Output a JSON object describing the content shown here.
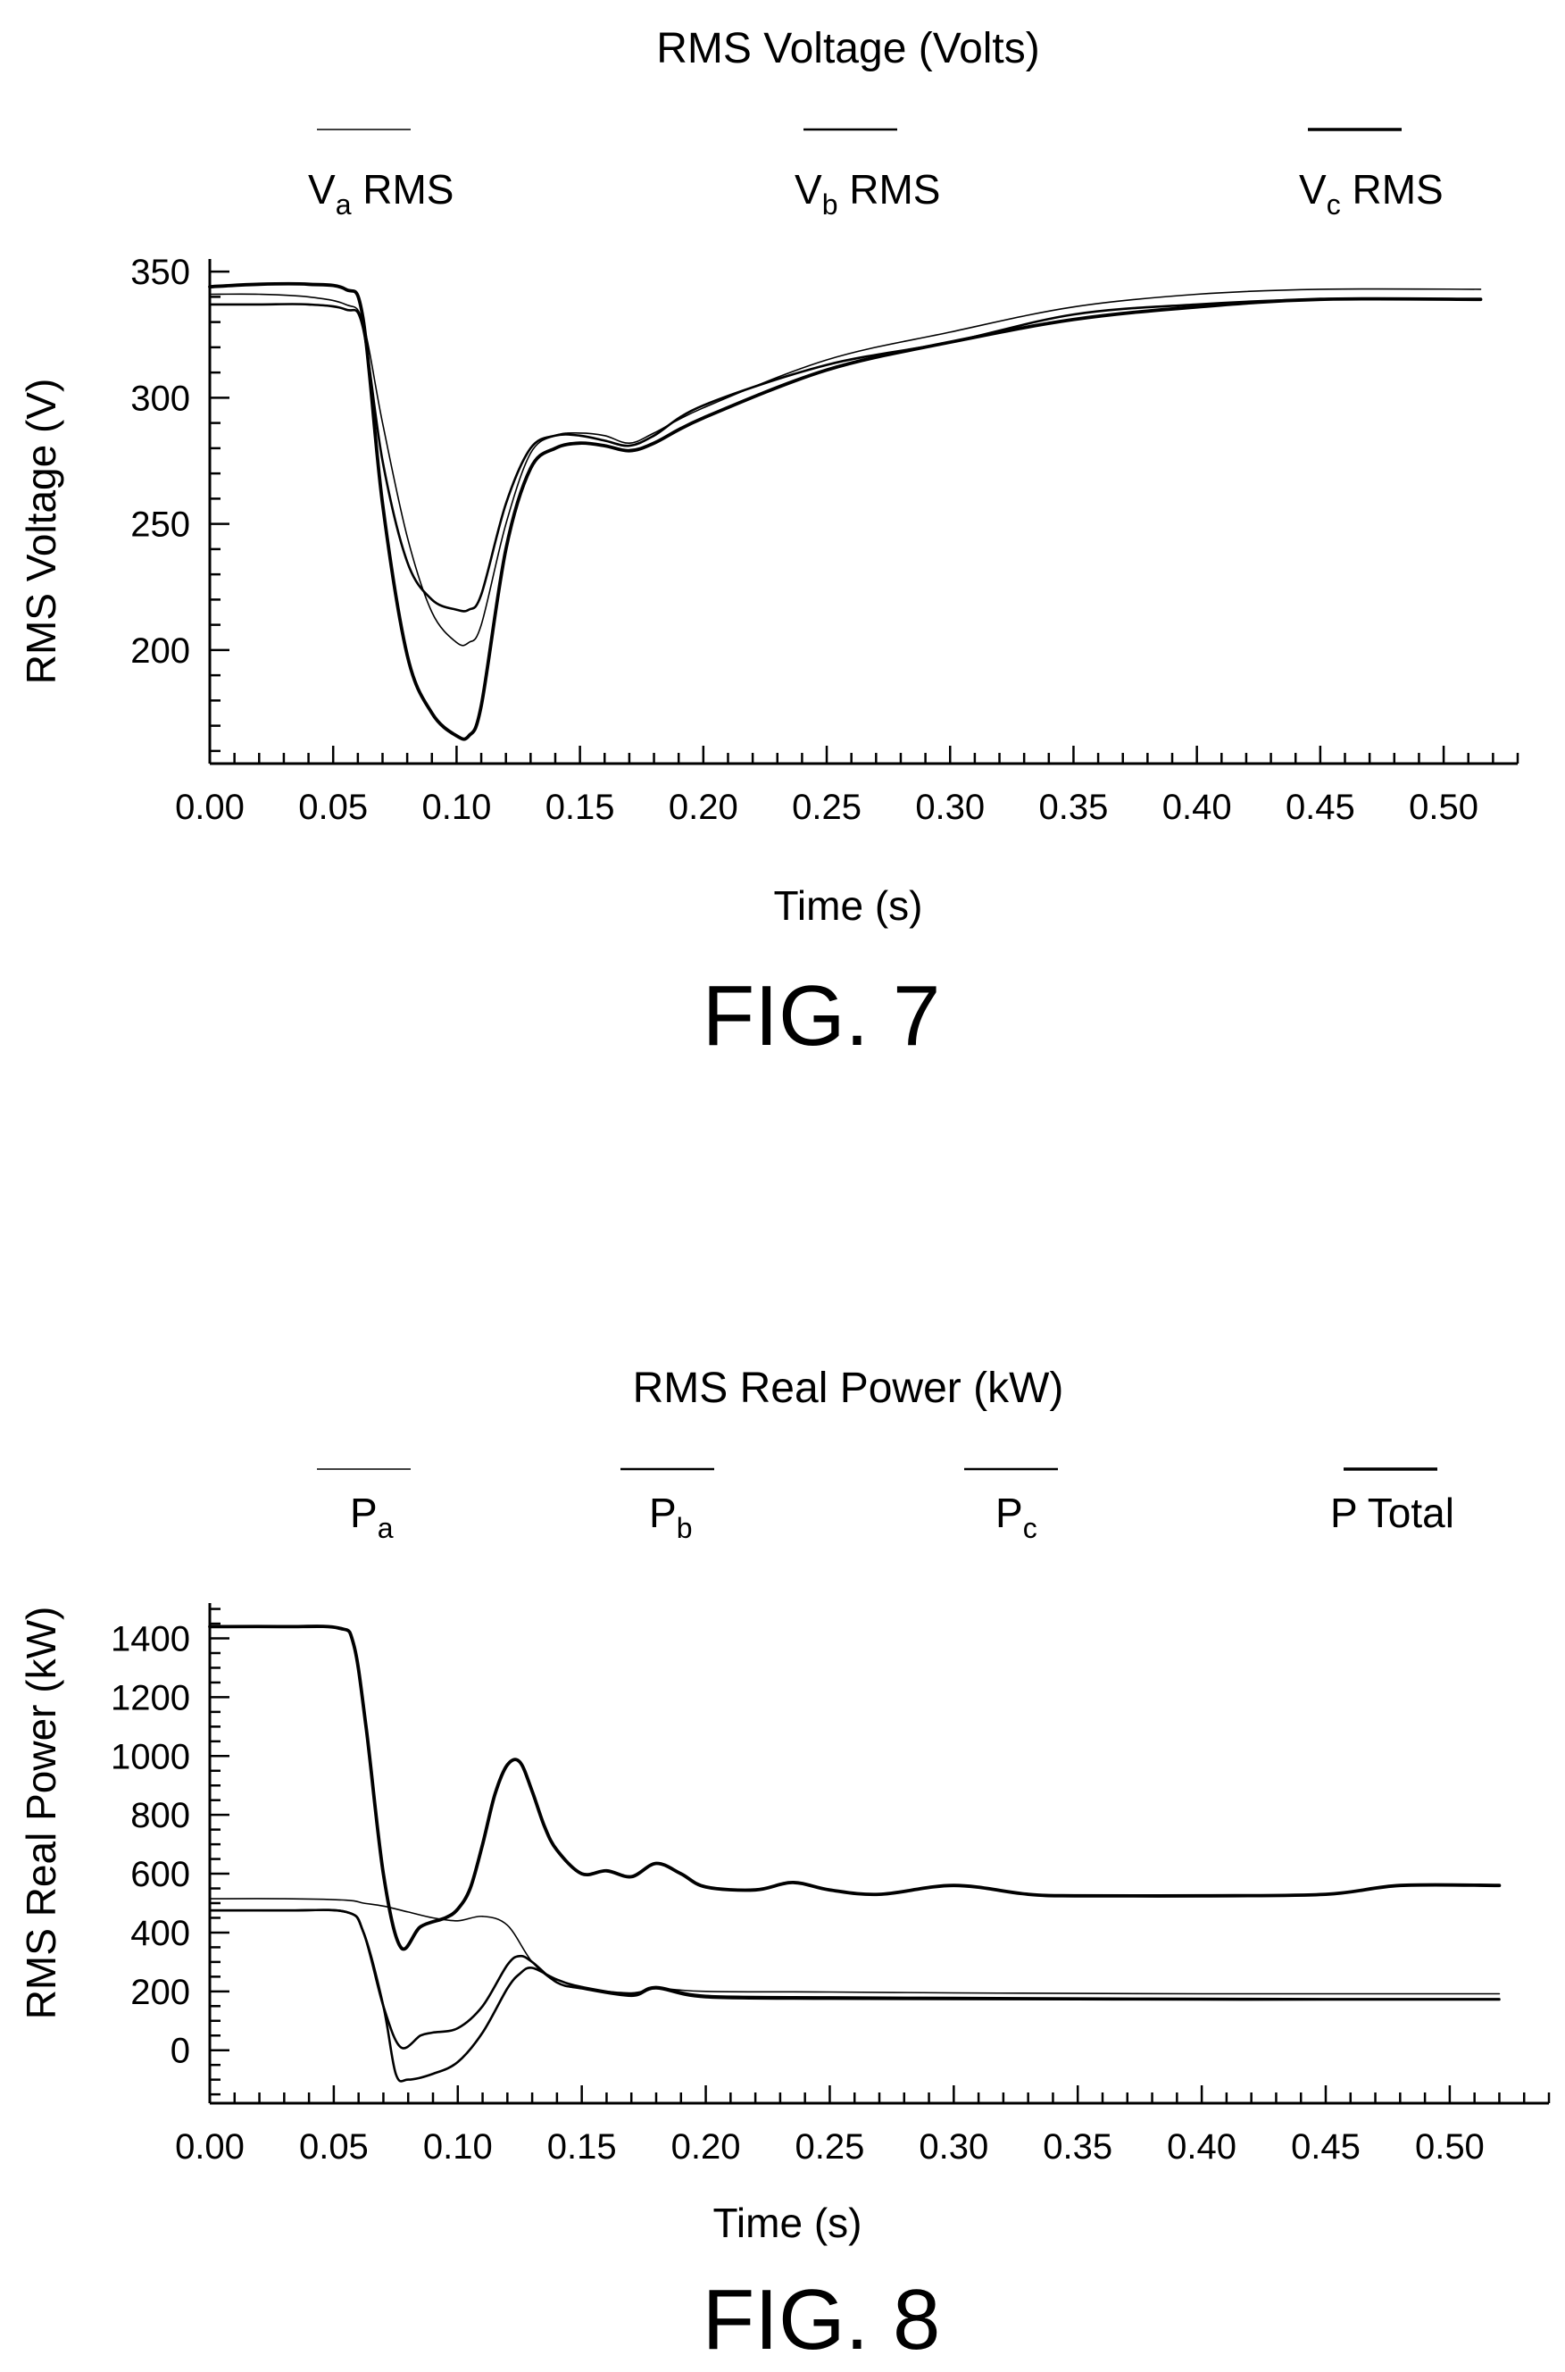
{
  "figures": [
    {
      "caption": "FIG. 7",
      "legend_title": "RMS Voltage (Volts)",
      "legend": [
        {
          "main": "V",
          "sub": "a",
          "suffix": " RMS",
          "weight": "thin"
        },
        {
          "main": "V",
          "sub": "b",
          "suffix": " RMS",
          "weight": "medium"
        },
        {
          "main": "V",
          "sub": "c",
          "suffix": " RMS",
          "weight": "thick"
        }
      ]
    },
    {
      "caption": "FIG. 8",
      "legend_title": "RMS Real Power (kW)",
      "legend": [
        {
          "main": "P",
          "sub": "a",
          "suffix": "",
          "weight": "thin"
        },
        {
          "main": "P",
          "sub": "b",
          "suffix": "",
          "weight": "medium"
        },
        {
          "main": "P",
          "sub": "c",
          "suffix": "",
          "weight": "medium"
        },
        {
          "main": "P Total",
          "sub": "",
          "suffix": "",
          "weight": "thick"
        }
      ]
    }
  ],
  "chart_data": [
    {
      "type": "line",
      "title": "RMS Voltage (Volts)",
      "xlabel": "Time (s)",
      "ylabel": "RMS Voltage (V)",
      "xlim": [
        0,
        0.53
      ],
      "ylim": [
        155,
        355
      ],
      "xticks": [
        0.0,
        0.05,
        0.1,
        0.15,
        0.2,
        0.25,
        0.3,
        0.35,
        0.4,
        0.45,
        0.5
      ],
      "yticks": [
        200,
        250,
        300,
        350
      ],
      "series": [
        {
          "name": "Va RMS",
          "weight": "thin",
          "x": [
            0,
            0.02,
            0.04,
            0.055,
            0.062,
            0.07,
            0.08,
            0.09,
            0.1,
            0.105,
            0.11,
            0.12,
            0.13,
            0.14,
            0.15,
            0.16,
            0.17,
            0.18,
            0.2,
            0.25,
            0.3,
            0.35,
            0.4,
            0.45,
            0.515
          ],
          "y": [
            341,
            341,
            340,
            337,
            330,
            290,
            245,
            215,
            203,
            203,
            210,
            250,
            278,
            285,
            286,
            285,
            282,
            286,
            296,
            315,
            326,
            336,
            341,
            343,
            343
          ]
        },
        {
          "name": "Vb RMS",
          "weight": "medium",
          "x": [
            0,
            0.02,
            0.04,
            0.055,
            0.062,
            0.07,
            0.08,
            0.09,
            0.1,
            0.105,
            0.11,
            0.12,
            0.13,
            0.14,
            0.15,
            0.16,
            0.17,
            0.18,
            0.2,
            0.25,
            0.3,
            0.35,
            0.4,
            0.45,
            0.515
          ],
          "y": [
            337,
            337,
            337,
            335,
            328,
            275,
            235,
            220,
            216,
            216,
            222,
            258,
            280,
            285,
            285,
            283,
            281,
            285,
            297,
            313,
            322,
            333,
            337,
            339,
            339
          ]
        },
        {
          "name": "Vc RMS",
          "weight": "thick",
          "x": [
            0,
            0.02,
            0.04,
            0.055,
            0.062,
            0.07,
            0.08,
            0.09,
            0.1,
            0.105,
            0.11,
            0.12,
            0.13,
            0.14,
            0.15,
            0.16,
            0.17,
            0.18,
            0.2,
            0.25,
            0.3,
            0.35,
            0.4,
            0.45,
            0.515
          ],
          "y": [
            344,
            345,
            345,
            343,
            332,
            258,
            198,
            175,
            166,
            166,
            178,
            240,
            272,
            280,
            282,
            281,
            279,
            282,
            292,
            311,
            322,
            331,
            336,
            339,
            339
          ]
        }
      ]
    },
    {
      "type": "line",
      "title": "RMS Real Power (kW)",
      "xlabel": "Time (s)",
      "ylabel": "RMS Real Power (kW)",
      "xlim": [
        0,
        0.54
      ],
      "ylim": [
        -180,
        1520
      ],
      "xticks": [
        0.0,
        0.05,
        0.1,
        0.15,
        0.2,
        0.25,
        0.3,
        0.35,
        0.4,
        0.45,
        0.5
      ],
      "yticks": [
        0,
        200,
        400,
        600,
        800,
        1000,
        1200,
        1400
      ],
      "series": [
        {
          "name": "Pa",
          "weight": "thin",
          "x": [
            0,
            0.03,
            0.055,
            0.062,
            0.07,
            0.08,
            0.09,
            0.1,
            0.11,
            0.12,
            0.13,
            0.14,
            0.15,
            0.17,
            0.18,
            0.2,
            0.25,
            0.3,
            0.35,
            0.4,
            0.45,
            0.52
          ],
          "y": [
            515,
            515,
            510,
            500,
            490,
            470,
            450,
            440,
            455,
            425,
            300,
            230,
            210,
            195,
            210,
            200,
            198,
            195,
            193,
            192,
            192,
            192
          ]
        },
        {
          "name": "Pb",
          "weight": "medium",
          "x": [
            0,
            0.03,
            0.055,
            0.062,
            0.07,
            0.075,
            0.08,
            0.09,
            0.1,
            0.11,
            0.12,
            0.125,
            0.13,
            0.14,
            0.15,
            0.17,
            0.18,
            0.2,
            0.25,
            0.3,
            0.35,
            0.4,
            0.45,
            0.52
          ],
          "y": [
            475,
            475,
            470,
            400,
            150,
            -80,
            -100,
            -80,
            -40,
            60,
            210,
            260,
            280,
            240,
            215,
            190,
            215,
            185,
            180,
            178,
            176,
            175,
            174,
            174
          ]
        },
        {
          "name": "Pc",
          "weight": "medium",
          "x": [
            0,
            0.03,
            0.055,
            0.062,
            0.07,
            0.077,
            0.085,
            0.09,
            0.1,
            0.11,
            0.12,
            0.125,
            0.13,
            0.14,
            0.15,
            0.17,
            0.18,
            0.2,
            0.25,
            0.3,
            0.35,
            0.4,
            0.45,
            0.52
          ],
          "y": [
            475,
            475,
            470,
            400,
            150,
            10,
            50,
            60,
            75,
            150,
            290,
            320,
            300,
            230,
            210,
            185,
            210,
            180,
            175,
            174,
            173,
            172,
            172,
            172
          ]
        },
        {
          "name": "P Total",
          "weight": "thick",
          "x": [
            0,
            0.03,
            0.052,
            0.058,
            0.063,
            0.07,
            0.077,
            0.085,
            0.095,
            0.1,
            0.105,
            0.11,
            0.115,
            0.12,
            0.125,
            0.13,
            0.135,
            0.14,
            0.15,
            0.16,
            0.17,
            0.18,
            0.19,
            0.2,
            0.22,
            0.235,
            0.25,
            0.27,
            0.3,
            0.33,
            0.35,
            0.4,
            0.45,
            0.48,
            0.52
          ],
          "y": [
            1440,
            1440,
            1435,
            1380,
            1100,
            600,
            350,
            420,
            450,
            480,
            550,
            700,
            870,
            970,
            980,
            880,
            760,
            680,
            600,
            610,
            590,
            635,
            600,
            555,
            545,
            570,
            545,
            530,
            560,
            530,
            525,
            525,
            530,
            560,
            560
          ]
        }
      ]
    }
  ]
}
